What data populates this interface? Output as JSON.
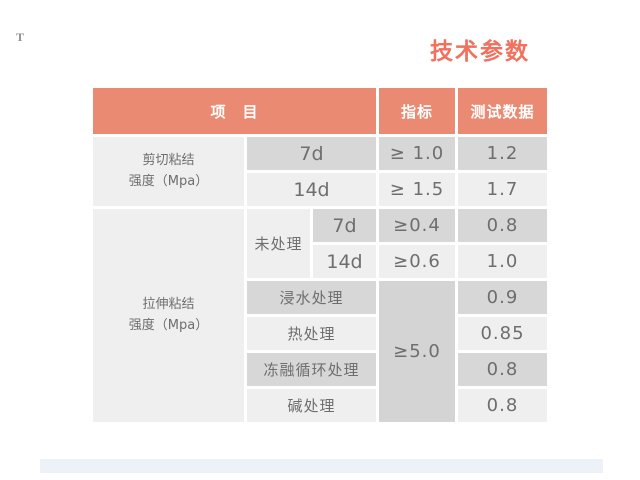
{
  "page": {
    "title": "技术参数",
    "corner_mark": "T"
  },
  "colors": {
    "header_bg": "#EA8A72",
    "title_text": "#F1705E",
    "row_dark": "#D7D7D7",
    "row_light": "#EFEFEF",
    "merged_indicator_bg": "#D4D4D4",
    "body_text": "#6E6E6E",
    "footer_bar": "#EDF1F8"
  },
  "table": {
    "header": {
      "item": "项　目",
      "indicator": "指标",
      "test_data": "测试数据"
    },
    "group1": {
      "label_line1": "剪切粘结",
      "label_line2": "强度（Mpa）"
    },
    "group2": {
      "label_line1": "拉伸粘结",
      "label_line2": "强度（Mpa）",
      "untreated": "未处理"
    },
    "merged_indicator": "≥5.0",
    "rows": [
      {
        "sub": "7d",
        "indicator": "≥ 1.0",
        "value": "1.2"
      },
      {
        "sub": "14d",
        "indicator": "≥ 1.5",
        "value": "1.7"
      },
      {
        "sub": "7d",
        "indicator": "≥0.4",
        "value": "0.8"
      },
      {
        "sub": "14d",
        "indicator": "≥0.6",
        "value": "1.0"
      },
      {
        "sub": "浸水处理",
        "value": "0.9"
      },
      {
        "sub": "热处理",
        "value": "0.85"
      },
      {
        "sub": "冻融循环处理",
        "value": "0.8"
      },
      {
        "sub": "碱处理",
        "value": "0.8"
      }
    ]
  }
}
